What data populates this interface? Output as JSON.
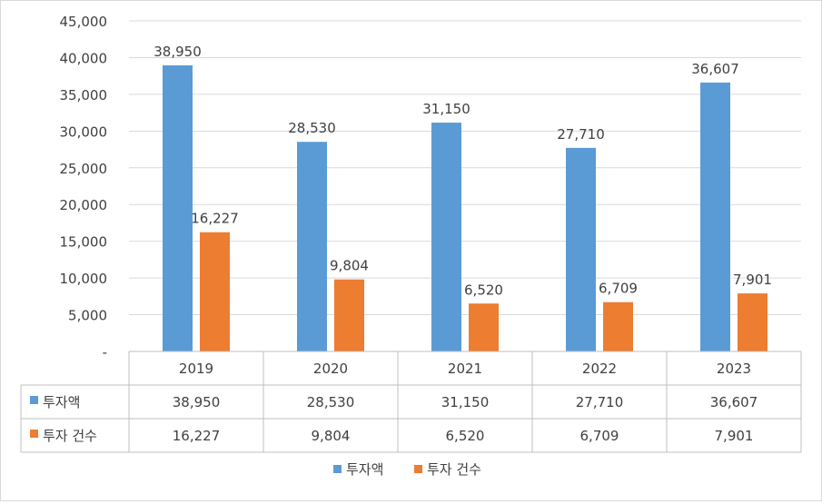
{
  "chart_data": {
    "type": "bar",
    "categories": [
      "2019",
      "2020",
      "2021",
      "2022",
      "2023"
    ],
    "series": [
      {
        "name": "투자액",
        "values": [
          38950,
          28530,
          31150,
          27710,
          36607
        ],
        "color": "#5b9bd5"
      },
      {
        "name": "투자 건수",
        "values": [
          16227,
          9804,
          6520,
          6709,
          7901
        ],
        "color": "#ed7d31"
      }
    ],
    "data_labels": [
      [
        "38,950",
        "28,530",
        "31,150",
        "27,710",
        "36,607"
      ],
      [
        "16,227",
        "9,804",
        "6,520",
        "6,709",
        "7,901"
      ]
    ],
    "ylim": [
      0,
      45000
    ],
    "y_ticks": [
      0,
      5000,
      10000,
      15000,
      20000,
      25000,
      30000,
      35000,
      40000,
      45000
    ],
    "y_tick_labels": [
      "-",
      "5,000",
      "10,000",
      "15,000",
      "20,000",
      "25,000",
      "30,000",
      "35,000",
      "40,000",
      "45,000"
    ],
    "grid": true,
    "legend_position": "bottom",
    "data_table": true
  }
}
